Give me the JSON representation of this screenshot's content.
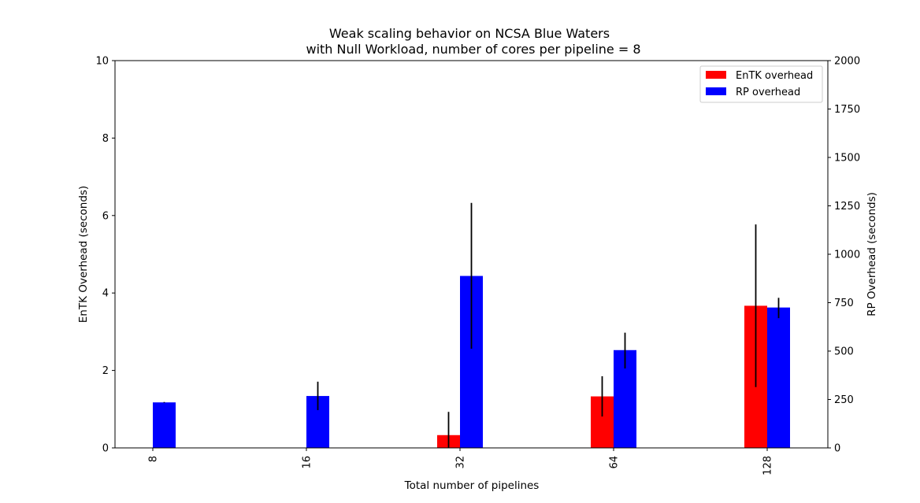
{
  "chart_data": {
    "type": "bar",
    "title": [
      "Weak scaling behavior on NCSA Blue Waters",
      "with Null Workload, number of cores per pipeline = 8"
    ],
    "xlabel": "Total number of pipelines",
    "ylabel_left": "EnTK Overhead (seconds)",
    "ylabel_right": "RP Overhead (seconds)",
    "categories": [
      "8",
      "16",
      "32",
      "64",
      "128"
    ],
    "ylim_left": [
      0,
      10
    ],
    "ylim_right": [
      0,
      2000
    ],
    "yticks_left": [
      "0",
      "2",
      "4",
      "6",
      "8",
      "10"
    ],
    "yticks_right": [
      "0",
      "250",
      "500",
      "750",
      "1000",
      "1250",
      "1500",
      "1750",
      "2000"
    ],
    "series": [
      {
        "name": "EnTK overhead",
        "axis": "left",
        "color": "#ff0000",
        "values": [
          0,
          0,
          0.33,
          1.33,
          3.67
        ],
        "errors": [
          0,
          0,
          0.6,
          0.52,
          2.1
        ]
      },
      {
        "name": "RP overhead",
        "axis": "right",
        "color": "#0000ff",
        "values": [
          235,
          268,
          888,
          505,
          725
        ],
        "errors": [
          0,
          0,
          0,
          0,
          0
        ],
        "error_low": [
          233,
          195,
          512,
          410,
          670
        ],
        "error_high": [
          237,
          342,
          1265,
          595,
          775
        ]
      }
    ],
    "legend": "top-right",
    "grid": false
  }
}
